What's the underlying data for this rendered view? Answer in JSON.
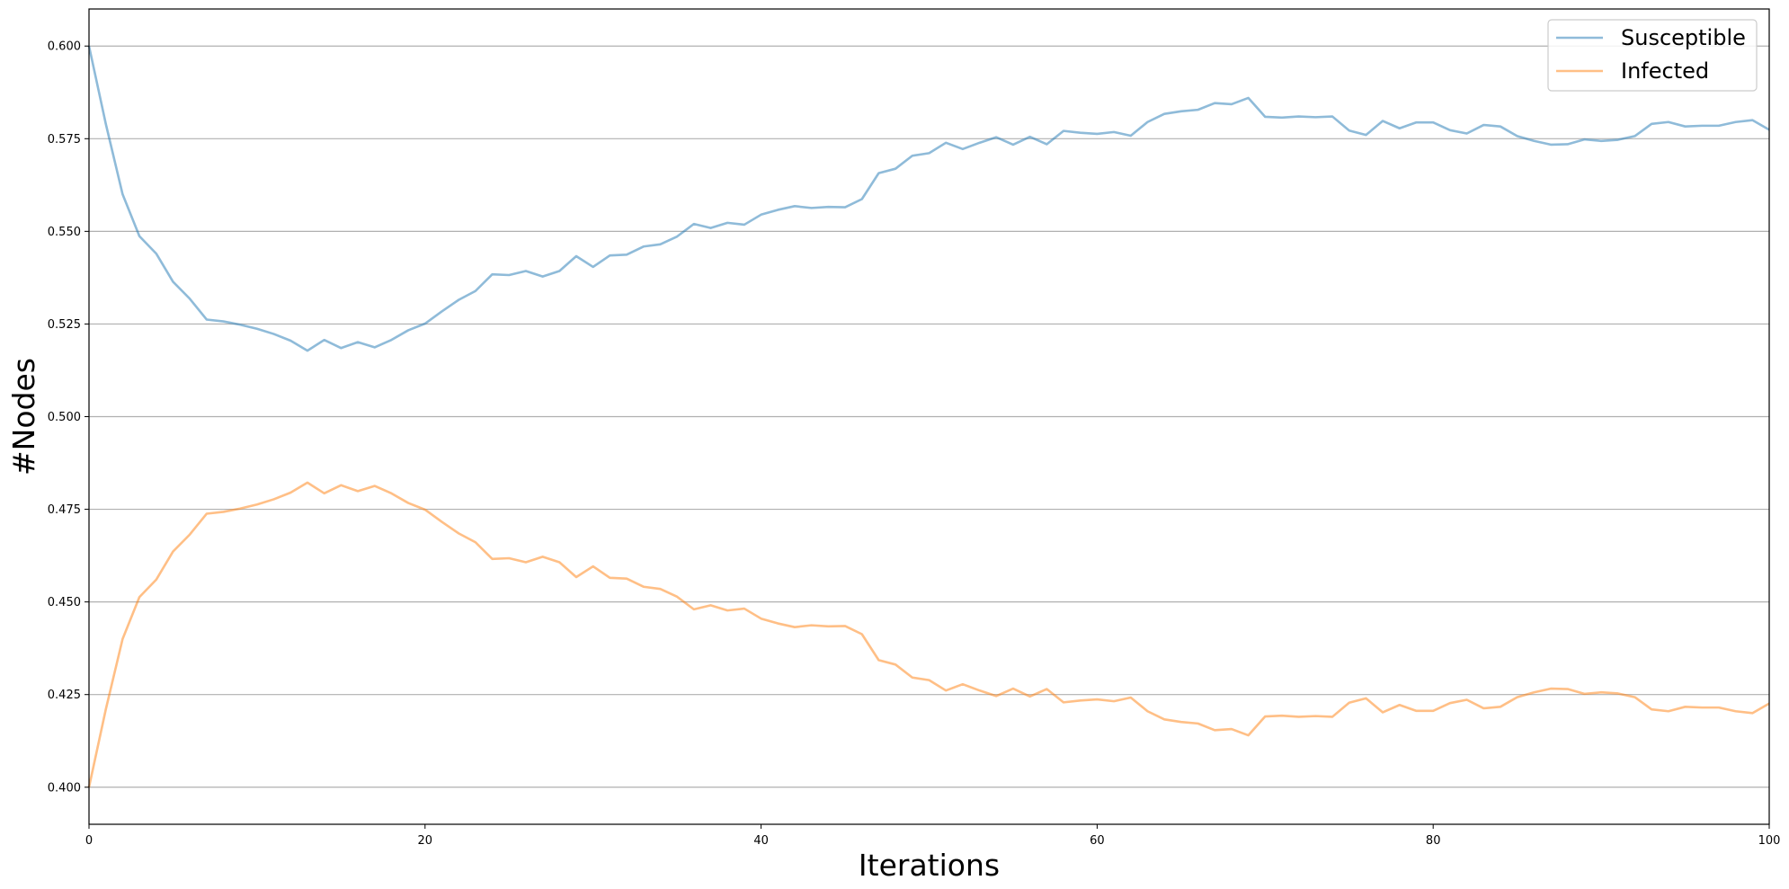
{
  "chart_data": {
    "type": "line",
    "title": "",
    "xlabel": "Iterations",
    "ylabel": "#Nodes",
    "xlim": [
      0,
      100
    ],
    "ylim": [
      0.39,
      0.61
    ],
    "x_ticks": [
      0,
      20,
      40,
      60,
      80,
      100
    ],
    "y_ticks": [
      0.4,
      0.425,
      0.45,
      0.475,
      0.5,
      0.525,
      0.55,
      0.575,
      0.6
    ],
    "grid": "horizontal",
    "legend_position": "top-right",
    "series": [
      {
        "name": "Susceptible",
        "color": "#1f77b4",
        "values": [
          0.6,
          0.579,
          0.56,
          0.5487,
          0.544,
          0.5364,
          0.5318,
          0.5262,
          0.5257,
          0.5248,
          0.5237,
          0.5223,
          0.5205,
          0.5178,
          0.5207,
          0.5185,
          0.5201,
          0.5187,
          0.5207,
          0.5233,
          0.5251,
          0.5284,
          0.5315,
          0.5339,
          0.5384,
          0.5382,
          0.5393,
          0.5378,
          0.5393,
          0.5433,
          0.5404,
          0.5435,
          0.5437,
          0.5459,
          0.5465,
          0.5486,
          0.552,
          0.5509,
          0.5523,
          0.5518,
          0.5545,
          0.5558,
          0.5568,
          0.5563,
          0.5566,
          0.5565,
          0.5587,
          0.5657,
          0.5669,
          0.5704,
          0.5711,
          0.5739,
          0.5722,
          0.5739,
          0.5754,
          0.5734,
          0.5755,
          0.5735,
          0.5771,
          0.5766,
          0.5763,
          0.5768,
          0.5758,
          0.5795,
          0.5817,
          0.5824,
          0.5828,
          0.5846,
          0.5843,
          0.586,
          0.5809,
          0.5807,
          0.581,
          0.5808,
          0.581,
          0.5772,
          0.576,
          0.5798,
          0.5778,
          0.5794,
          0.5794,
          0.5773,
          0.5764,
          0.5787,
          0.5783,
          0.5757,
          0.5744,
          0.5734,
          0.5735,
          0.5748,
          0.5744,
          0.5747,
          0.5757,
          0.579,
          0.5795,
          0.5783,
          0.5785,
          0.5785,
          0.5795,
          0.58,
          0.5774
        ]
      },
      {
        "name": "Infected",
        "color": "#ff7f0e",
        "values": [
          0.4,
          0.421,
          0.44,
          0.4513,
          0.456,
          0.4636,
          0.4682,
          0.4738,
          0.4743,
          0.4752,
          0.4763,
          0.4777,
          0.4795,
          0.4822,
          0.4793,
          0.4815,
          0.4799,
          0.4813,
          0.4793,
          0.4767,
          0.4749,
          0.4716,
          0.4685,
          0.4661,
          0.4616,
          0.4618,
          0.4607,
          0.4622,
          0.4607,
          0.4567,
          0.4596,
          0.4565,
          0.4563,
          0.4541,
          0.4535,
          0.4514,
          0.448,
          0.4491,
          0.4477,
          0.4482,
          0.4455,
          0.4442,
          0.4432,
          0.4437,
          0.4434,
          0.4435,
          0.4413,
          0.4343,
          0.4331,
          0.4296,
          0.4289,
          0.4261,
          0.4278,
          0.4261,
          0.4246,
          0.4266,
          0.4245,
          0.4265,
          0.4229,
          0.4234,
          0.4237,
          0.4232,
          0.4242,
          0.4205,
          0.4183,
          0.4176,
          0.4172,
          0.4154,
          0.4157,
          0.414,
          0.4191,
          0.4193,
          0.419,
          0.4192,
          0.419,
          0.4228,
          0.424,
          0.4202,
          0.4222,
          0.4206,
          0.4206,
          0.4227,
          0.4236,
          0.4213,
          0.4217,
          0.4243,
          0.4256,
          0.4266,
          0.4265,
          0.4252,
          0.4256,
          0.4253,
          0.4243,
          0.421,
          0.4205,
          0.4217,
          0.4215,
          0.4215,
          0.4205,
          0.42,
          0.4226
        ]
      }
    ]
  }
}
